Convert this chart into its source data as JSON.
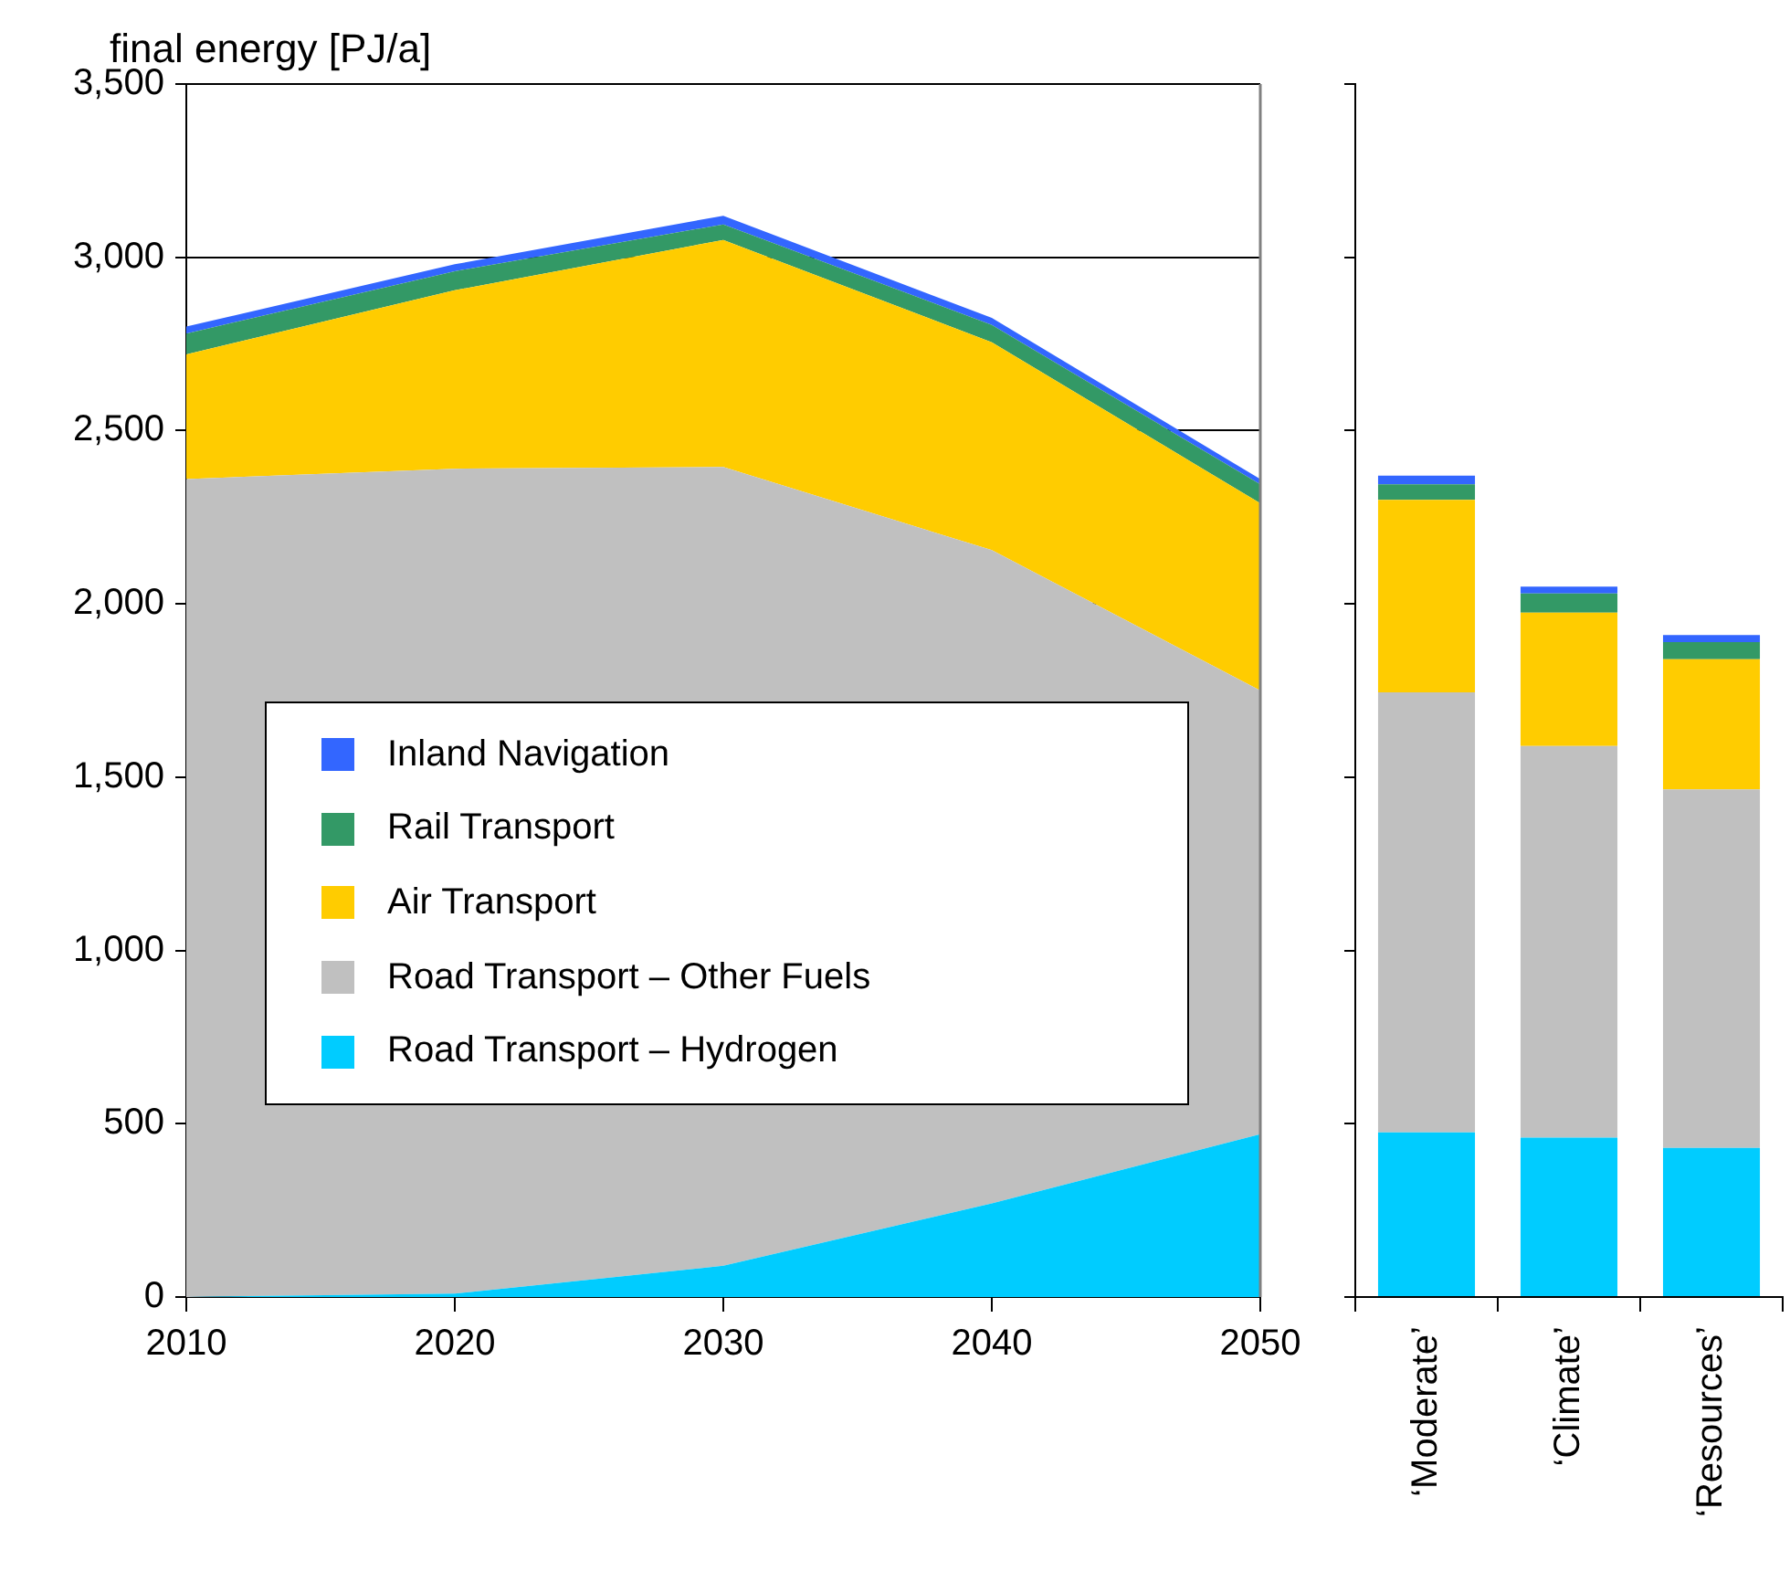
{
  "chart_data": [
    {
      "type": "area",
      "ylabel": "final energy [PJ/a]",
      "x": [
        2010,
        2020,
        2030,
        2040,
        2050
      ],
      "xlim": [
        2010,
        2050
      ],
      "xticks": [
        2010,
        2020,
        2030,
        2040,
        2050
      ],
      "ylim": [
        0,
        3500
      ],
      "yticks": [
        0,
        500,
        {
          "value": 1000,
          "label": "1,000"
        },
        {
          "value": 1500,
          "label": "1,500"
        },
        {
          "value": 2000,
          "label": "2,000"
        },
        {
          "value": 2500,
          "label": "2,500"
        },
        {
          "value": 3000,
          "label": "3,000"
        },
        {
          "value": 3500,
          "label": "3,500"
        }
      ],
      "stacked": true,
      "grid": "y",
      "legend": "left",
      "series": [
        {
          "name": "Road Transport – Hydrogen",
          "color": "#00ccff",
          "values": [
            0,
            10,
            90,
            270,
            470
          ]
        },
        {
          "name": "Road Transport – Other Fuels",
          "color": "#c0c0c0",
          "values": [
            2360,
            2380,
            2305,
            1885,
            1280
          ]
        },
        {
          "name": "Air Transport",
          "color": "#ffcc00",
          "values": [
            360,
            515,
            655,
            600,
            540
          ]
        },
        {
          "name": "Rail Transport",
          "color": "#339966",
          "values": [
            60,
            55,
            45,
            50,
            55
          ]
        },
        {
          "name": "Inland Navigation",
          "color": "#3366ff",
          "values": [
            20,
            20,
            25,
            20,
            15
          ]
        }
      ]
    },
    {
      "type": "bar",
      "categories": [
        "‘Moderate’",
        "‘Climate’",
        "‘Resources’"
      ],
      "ylim": [
        0,
        3500
      ],
      "yticks": [
        0,
        500,
        1000,
        1500,
        2000,
        2500,
        3000,
        3500
      ],
      "tick_labels": "x",
      "stacked": true,
      "series": [
        {
          "color": "#00ccff",
          "values": [
            475,
            460,
            430
          ]
        },
        {
          "color": "#c0c0c0",
          "values": [
            1270,
            1130,
            1035
          ]
        },
        {
          "color": "#ffcc00",
          "values": [
            555,
            385,
            375
          ]
        },
        {
          "color": "#339966",
          "values": [
            45,
            55,
            50
          ]
        },
        {
          "color": "#3366ff",
          "values": [
            25,
            20,
            20
          ]
        }
      ]
    }
  ]
}
